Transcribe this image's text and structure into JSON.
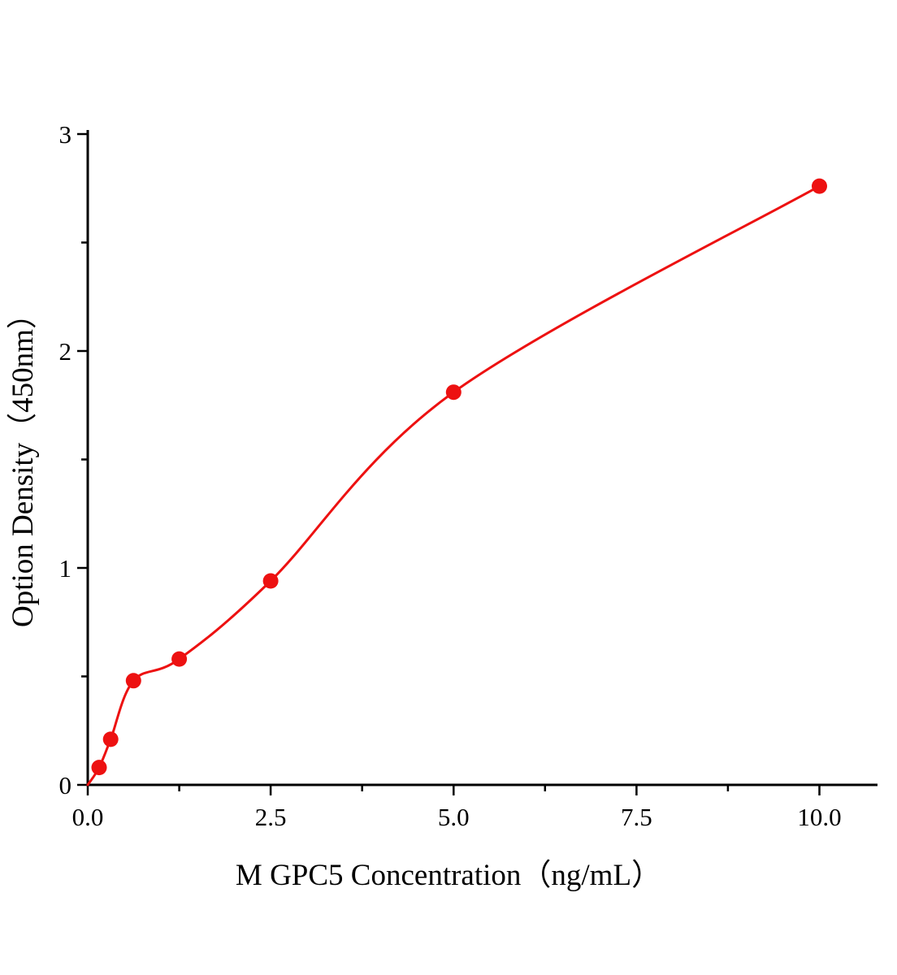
{
  "chart_data": {
    "type": "scatter",
    "title": "",
    "xlabel": "M GPC5 Concentration（ng/mL）",
    "ylabel": "Option Density（450nm）",
    "x": [
      0.156,
      0.313,
      0.625,
      1.25,
      2.5,
      5.0,
      10.0
    ],
    "y": [
      0.08,
      0.21,
      0.48,
      0.58,
      0.94,
      1.81,
      2.76
    ],
    "curve_origin": [
      0,
      0
    ],
    "xlim": [
      0,
      10.8
    ],
    "ylim": [
      0,
      3.02
    ],
    "x_ticks": {
      "values": [
        0,
        2.5,
        5.0,
        7.5,
        10.0
      ],
      "labels": [
        "0.0",
        "2.5",
        "5.0",
        "7.5",
        "10.0"
      ],
      "minor": [
        1.25,
        3.75,
        6.25,
        8.75
      ]
    },
    "y_ticks": {
      "values": [
        0,
        1,
        2,
        3
      ],
      "labels": [
        "0",
        "1",
        "2",
        "3"
      ],
      "minor": [
        0.5,
        1.5,
        2.5
      ]
    },
    "grid": false,
    "marker_color": "#ed1111",
    "line_color": "#ed1111",
    "axis_color": "#000000"
  }
}
